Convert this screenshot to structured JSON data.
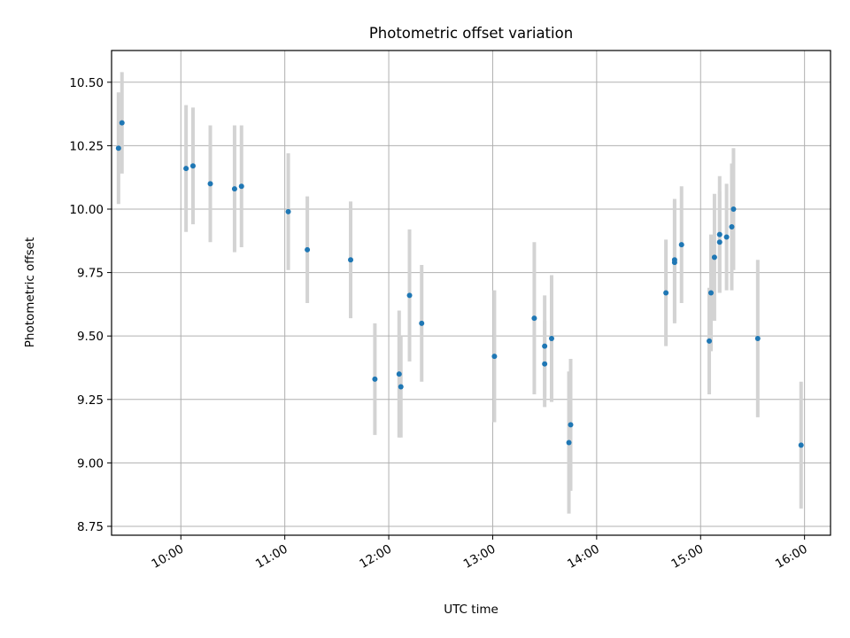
{
  "chart_data": {
    "type": "scatter",
    "title": "Photometric offset variation",
    "xlabel": "UTC time",
    "ylabel": "Photometric offset",
    "xlim": [
      "09:20",
      "16:15"
    ],
    "ylim": [
      8.715,
      10.625
    ],
    "x_ticks": [
      "10:00",
      "11:00",
      "12:00",
      "13:00",
      "14:00",
      "15:00",
      "16:00"
    ],
    "y_ticks": [
      "8.75",
      "9.00",
      "9.25",
      "9.50",
      "9.75",
      "10.00",
      "10.25",
      "10.50"
    ],
    "grid": true,
    "marker_color": "#1f77b4",
    "errorbar_color": "#d3d3d3",
    "points": [
      {
        "t": "09:24",
        "y": 10.24,
        "err": 0.22
      },
      {
        "t": "09:26",
        "y": 10.34,
        "err": 0.2
      },
      {
        "t": "10:03",
        "y": 10.16,
        "err": 0.25
      },
      {
        "t": "10:07",
        "y": 10.17,
        "err": 0.23
      },
      {
        "t": "10:17",
        "y": 10.1,
        "err": 0.23
      },
      {
        "t": "10:31",
        "y": 10.08,
        "err": 0.25
      },
      {
        "t": "10:35",
        "y": 10.09,
        "err": 0.24
      },
      {
        "t": "11:02",
        "y": 9.99,
        "err": 0.23
      },
      {
        "t": "11:13",
        "y": 9.84,
        "err": 0.21
      },
      {
        "t": "11:38",
        "y": 9.8,
        "err": 0.23
      },
      {
        "t": "11:52",
        "y": 9.33,
        "err": 0.22
      },
      {
        "t": "12:06",
        "y": 9.35,
        "err": 0.25
      },
      {
        "t": "12:07",
        "y": 9.3,
        "err": 0.2
      },
      {
        "t": "12:12",
        "y": 9.66,
        "err": 0.26
      },
      {
        "t": "12:19",
        "y": 9.55,
        "err": 0.23
      },
      {
        "t": "13:01",
        "y": 9.42,
        "err": 0.26
      },
      {
        "t": "13:24",
        "y": 9.57,
        "err": 0.3
      },
      {
        "t": "13:30",
        "y": 9.46,
        "err": 0.2
      },
      {
        "t": "13:30",
        "y": 9.39,
        "err": 0.17
      },
      {
        "t": "13:34",
        "y": 9.49,
        "err": 0.25
      },
      {
        "t": "13:45",
        "y": 9.15,
        "err": 0.26
      },
      {
        "t": "13:44",
        "y": 9.08,
        "err": 0.28
      },
      {
        "t": "14:40",
        "y": 9.67,
        "err": 0.21
      },
      {
        "t": "14:45",
        "y": 9.8,
        "err": 0.24
      },
      {
        "t": "14:45",
        "y": 9.79,
        "err": 0.24
      },
      {
        "t": "14:49",
        "y": 9.86,
        "err": 0.23
      },
      {
        "t": "15:05",
        "y": 9.48,
        "err": 0.21
      },
      {
        "t": "15:06",
        "y": 9.67,
        "err": 0.23
      },
      {
        "t": "15:08",
        "y": 9.81,
        "err": 0.25
      },
      {
        "t": "15:11",
        "y": 9.87,
        "err": 0.2
      },
      {
        "t": "15:11",
        "y": 9.9,
        "err": 0.23
      },
      {
        "t": "15:15",
        "y": 9.89,
        "err": 0.21
      },
      {
        "t": "15:18",
        "y": 9.93,
        "err": 0.25
      },
      {
        "t": "15:19",
        "y": 10.0,
        "err": 0.24
      },
      {
        "t": "15:33",
        "y": 9.49,
        "err": 0.31
      },
      {
        "t": "15:58",
        "y": 9.07,
        "err": 0.25
      }
    ]
  }
}
